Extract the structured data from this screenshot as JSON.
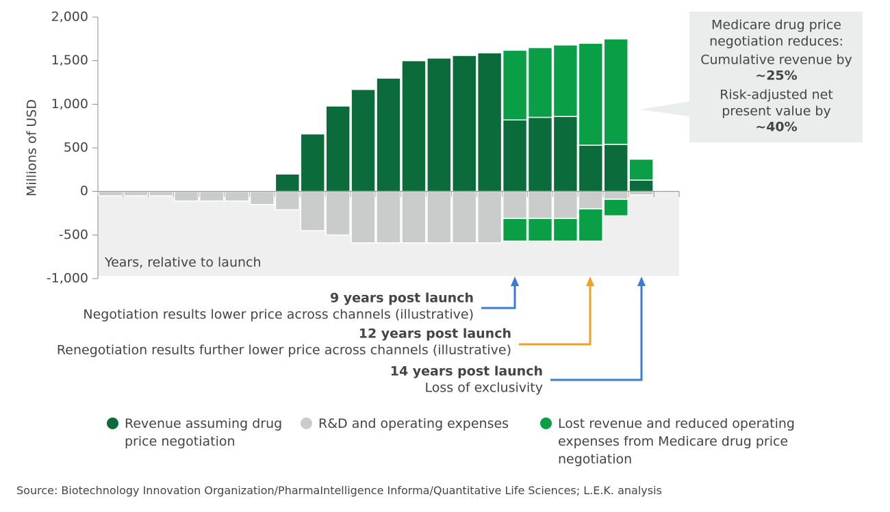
{
  "chart_data": {
    "type": "bar",
    "ylabel": "Millions of USD",
    "xlabel": "Years, relative to launch",
    "categories": [
      null,
      null,
      null,
      null,
      null,
      null,
      null,
      null,
      null,
      null,
      null,
      null,
      null,
      null,
      null,
      null,
      null,
      null,
      null,
      null,
      null,
      null,
      null
    ],
    "ylim": [
      -1000,
      2000
    ],
    "yticks": [
      {
        "value": -1000,
        "label": "-1,000"
      },
      -500,
      0,
      500,
      {
        "value": 1000,
        "label": "1,000"
      },
      {
        "value": 1500,
        "label": "1,500"
      },
      {
        "value": 2000,
        "label": "2,000"
      }
    ],
    "series": [
      {
        "name": "Revenue assuming drug price negotiation",
        "color": "#0b6b3a",
        "values": [
          null,
          null,
          null,
          null,
          null,
          null,
          null,
          200,
          660,
          980,
          1170,
          1300,
          1500,
          1530,
          1560,
          1590,
          820,
          850,
          860,
          530,
          540,
          130,
          null
        ]
      },
      {
        "name": "R&D and operating expenses",
        "color": "#c9cccb",
        "values": [
          -50,
          -50,
          -50,
          -110,
          -110,
          -110,
          -150,
          -210,
          -450,
          -500,
          -590,
          -590,
          -590,
          -590,
          -590,
          -590,
          -310,
          -310,
          -310,
          -200,
          -90,
          -40,
          null
        ]
      },
      {
        "name": "Lost revenue and reduced operating expenses from Medicare drug price negotiation",
        "color": "#0a9e47",
        "values": [
          null,
          null,
          null,
          null,
          null,
          null,
          null,
          null,
          null,
          null,
          null,
          null,
          null,
          null,
          null,
          null,
          800,
          800,
          820,
          1170,
          1210,
          240,
          null
        ],
        "expense_values": [
          null,
          null,
          null,
          null,
          null,
          null,
          null,
          null,
          null,
          null,
          null,
          null,
          null,
          null,
          null,
          null,
          -260,
          -260,
          -260,
          -370,
          -190,
          null,
          null
        ]
      }
    ],
    "callout": [
      {
        "text": "Medicare drug price",
        "bold": false
      },
      {
        "text": "negotiation reduces:",
        "bold": false
      },
      {
        "text": "Cumulative revenue by",
        "bold": false
      },
      {
        "text": "~25%",
        "bold": true
      },
      {
        "text": "Risk-adjusted net",
        "bold": false
      },
      {
        "text": "present value by",
        "bold": false
      },
      {
        "text": "~40%",
        "bold": true
      }
    ],
    "annotations": [
      {
        "title": "9 years post launch",
        "text": "Negotiation results lower price across channels (illustrative)",
        "color": "#3a7bd5"
      },
      {
        "title": "12 years post launch",
        "text": "Renegotiation results further lower price across channels (illustrative)",
        "color": "#f0a020"
      },
      {
        "title": "14 years post launch",
        "text": "Loss of exclusivity",
        "color": "#3a7bd5"
      }
    ],
    "source": "Source: Biotechnology Innovation Organization/PharmaIntelligence Informa/Quantitative Life Sciences; L.E.K. analysis"
  }
}
